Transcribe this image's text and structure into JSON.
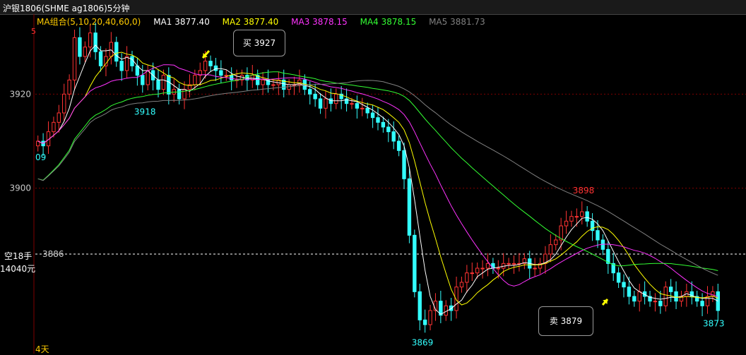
{
  "header": {
    "title": "沪银1806(SHME ag1806)5分钟"
  },
  "ma_legend": {
    "group": "MA组合(5,10,20,40,60,0)",
    "items": [
      {
        "label": "MA1 3877.40",
        "color": "#ffffff"
      },
      {
        "label": "MA2 3877.40",
        "color": "#ffff00"
      },
      {
        "label": "MA3 3878.15",
        "color": "#ff33ff"
      },
      {
        "label": "MA4 3878.15",
        "color": "#33ff33"
      },
      {
        "label": "MA5 3881.73",
        "color": "#808080"
      }
    ],
    "group_color": "#ffcc00"
  },
  "left_panel": {
    "short_label": "空18手",
    "amount_label": "14040元",
    "days_label": "4天",
    "top_marker": "5",
    "left_value": "09"
  },
  "callouts": {
    "buy": {
      "label": "买 3927",
      "price": 3927
    },
    "sell": {
      "label": "卖 3879",
      "price": 3879
    }
  },
  "chart_data": {
    "type": "candlestick",
    "title": "沪银1806(SHME ag1806)5分钟",
    "ylim": [
      3865,
      3937
    ],
    "yticks": [
      3920,
      3900
    ],
    "ytick_labels": [
      "3920",
      "3900"
    ],
    "position_line": {
      "value": 3886,
      "label": "3886"
    },
    "annotations": [
      {
        "text": "3918",
        "value": 3918,
        "color": "#33ffff"
      },
      {
        "text": "3898",
        "value": 3898,
        "color": "#ff3333"
      },
      {
        "text": "3869",
        "value": 3869,
        "color": "#33ffff"
      },
      {
        "text": "3873",
        "value": 3873,
        "color": "#33ffff"
      }
    ],
    "closes": [
      3910,
      3909,
      3912,
      3914,
      3916,
      3920,
      3923,
      3932,
      3928,
      3930,
      3933,
      3929,
      3926,
      3928,
      3931,
      3927,
      3925,
      3928,
      3926,
      3924,
      3922,
      3925,
      3923,
      3921,
      3924,
      3920,
      3921,
      3919,
      3921,
      3922,
      3924,
      3925,
      3927,
      3926,
      3925,
      3924,
      3924,
      3923,
      3923,
      3924,
      3923,
      3924,
      3922,
      3923,
      3922,
      3922,
      3923,
      3921,
      3922,
      3922,
      3923,
      3921,
      3920,
      3919,
      3917,
      3919,
      3918,
      3920,
      3919,
      3918,
      3918,
      3917,
      3917,
      3916,
      3915,
      3914,
      3913,
      3912,
      3910,
      3908,
      3902,
      3890,
      3878,
      3872,
      3871,
      3874,
      3876,
      3873,
      3875,
      3874,
      3879,
      3880,
      3882,
      3882,
      3883,
      3883,
      3884,
      3883,
      3883,
      3884,
      3884,
      3884,
      3884,
      3885,
      3883,
      3883,
      3884,
      3886,
      3888,
      3889,
      3892,
      3893,
      3894,
      3894,
      3895,
      3893,
      3891,
      3889,
      3887,
      3884,
      3882,
      3880,
      3879,
      3877,
      3876,
      3878,
      3877,
      3876,
      3876,
      3875,
      3879,
      3878,
      3876,
      3877,
      3878,
      3877,
      3876,
      3875,
      3877,
      3878,
      3874
    ],
    "series": [
      {
        "name": "MA1",
        "period": 5,
        "color": "#ffffff"
      },
      {
        "name": "MA2",
        "period": 10,
        "color": "#ffff00"
      },
      {
        "name": "MA3",
        "period": 20,
        "color": "#ff33ff"
      },
      {
        "name": "MA4",
        "period": 40,
        "color": "#33ff33"
      },
      {
        "name": "MA5",
        "period": 60,
        "color": "#808080"
      }
    ],
    "up_color": "#ff3333",
    "down_color": "#33ffff",
    "grid_color": "#800000"
  }
}
